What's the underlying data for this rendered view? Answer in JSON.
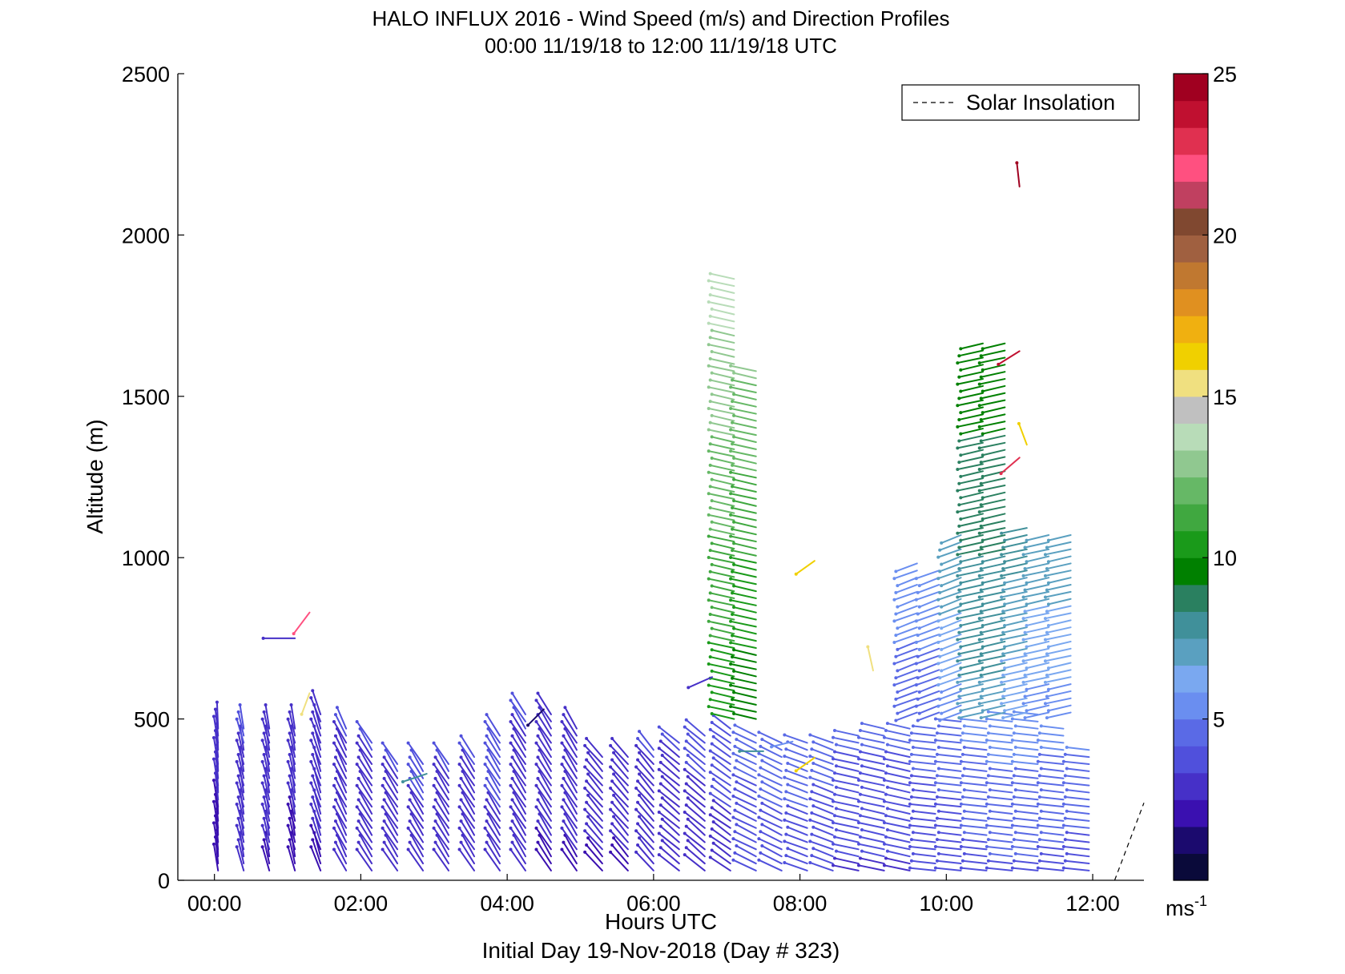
{
  "chart_data": {
    "type": "vector-profile",
    "title": "HALO INFLUX 2016 - Wind Speed (m/s) and Direction Profiles",
    "subtitle": "00:00 11/19/18 to 12:00 11/19/18  UTC",
    "xlabel": "Hours UTC",
    "xlabel2": "Initial Day 19-Nov-2018 (Day # 323)",
    "ylabel": "Altitude (m)",
    "xlim": [
      -0.5,
      12.7
    ],
    "ylim": [
      0,
      2500
    ],
    "x_ticks": [
      0,
      2,
      4,
      6,
      8,
      10,
      12
    ],
    "x_tick_labels": [
      "00:00",
      "02:00",
      "04:00",
      "06:00",
      "08:00",
      "10:00",
      "12:00"
    ],
    "y_ticks": [
      0,
      500,
      1000,
      1500,
      2000,
      2500
    ],
    "y_tick_labels": [
      "0",
      "500",
      "1000",
      "1500",
      "2000",
      "2500"
    ],
    "legend": {
      "label": "Solar Insolation",
      "placement": "top-right",
      "style": "dashed"
    },
    "colorbar": {
      "min": 0,
      "max": 25,
      "ticks": [
        5,
        10,
        15,
        20,
        25
      ],
      "tick_labels": [
        "5",
        "10",
        "15",
        "20",
        "25"
      ],
      "unit_label": "ms",
      "unit_sup": "-1",
      "colors": [
        "#0a0a3a",
        "#1b0a6e",
        "#3a10b0",
        "#4630c8",
        "#5050dc",
        "#5a6ae6",
        "#6a8ef0",
        "#7aa8f0",
        "#5aa0c0",
        "#40909a",
        "#2a8060",
        "#008000",
        "#1a9a1a",
        "#40a840",
        "#66b866",
        "#90c890",
        "#b8dcb8",
        "#c0c0c0",
        "#f0e080",
        "#f0d000",
        "#f0b010",
        "#e09020",
        "#c07830",
        "#a06040",
        "#804830",
        "#c04060",
        "#ff5080",
        "#e03050",
        "#c01030",
        "#a00020"
      ]
    },
    "solar_insolation": {
      "x": [
        12.3,
        12.7
      ],
      "y": [
        0,
        240
      ]
    },
    "profiles": [
      {
        "t": 0.05,
        "z0": 30,
        "z1": 470,
        "speed": 2.5,
        "dx": -1,
        "dy": -10
      },
      {
        "t": 0.4,
        "z0": 30,
        "z1": 470,
        "speed": 3.0,
        "dx": -2,
        "dy": -9
      },
      {
        "t": 0.75,
        "z0": 30,
        "z1": 470,
        "speed": 2.8,
        "dx": -2,
        "dy": -9
      },
      {
        "t": 1.1,
        "z0": 30,
        "z1": 470,
        "speed": 2.6,
        "dx": -2,
        "dy": -9
      },
      {
        "t": 1.45,
        "z0": 30,
        "z1": 520,
        "speed": 2.8,
        "dx": -3,
        "dy": -9
      },
      {
        "t": 1.8,
        "z0": 30,
        "z1": 490,
        "speed": 3.0,
        "dx": -4,
        "dy": -8
      },
      {
        "t": 2.15,
        "z0": 30,
        "z1": 440,
        "speed": 3.0,
        "dx": -5,
        "dy": -8
      },
      {
        "t": 2.5,
        "z0": 30,
        "z1": 380,
        "speed": 3.0,
        "dx": -5,
        "dy": -8
      },
      {
        "t": 2.85,
        "z0": 30,
        "z1": 360,
        "speed": 3.2,
        "dx": -5,
        "dy": -8
      },
      {
        "t": 3.2,
        "z0": 30,
        "z1": 380,
        "speed": 3.0,
        "dx": -5,
        "dy": -8
      },
      {
        "t": 3.55,
        "z0": 30,
        "z1": 390,
        "speed": 3.0,
        "dx": -5,
        "dy": -8
      },
      {
        "t": 3.9,
        "z0": 30,
        "z1": 460,
        "speed": 3.4,
        "dx": -5,
        "dy": -8
      },
      {
        "t": 4.25,
        "z0": 30,
        "z1": 520,
        "speed": 3.0,
        "dx": -5,
        "dy": -8
      },
      {
        "t": 4.6,
        "z0": 30,
        "z1": 520,
        "speed": 2.8,
        "dx": -5,
        "dy": -8
      },
      {
        "t": 4.95,
        "z0": 30,
        "z1": 480,
        "speed": 2.8,
        "dx": -5,
        "dy": -8
      },
      {
        "t": 5.3,
        "z0": 30,
        "z1": 400,
        "speed": 2.8,
        "dx": -6,
        "dy": -7
      },
      {
        "t": 5.65,
        "z0": 30,
        "z1": 400,
        "speed": 2.8,
        "dx": -6,
        "dy": -7
      },
      {
        "t": 6.0,
        "z0": 30,
        "z1": 420,
        "speed": 3.0,
        "dx": -6,
        "dy": -7
      },
      {
        "t": 6.35,
        "z0": 30,
        "z1": 440,
        "speed": 3.0,
        "dx": -7,
        "dy": -6
      },
      {
        "t": 6.7,
        "z0": 30,
        "z1": 450,
        "speed": 3.2,
        "dx": -7,
        "dy": -6
      },
      {
        "t": 7.05,
        "z0": 30,
        "z1": 480,
        "speed": 3.4,
        "dx": -7,
        "dy": -5
      },
      {
        "t": 7.4,
        "z0": 30,
        "z1": 460,
        "speed": 4.0,
        "dx": -8,
        "dy": -4
      },
      {
        "t": 7.75,
        "z0": 30,
        "z1": 440,
        "speed": 4.2,
        "dx": -8,
        "dy": -4
      },
      {
        "t": 8.1,
        "z0": 30,
        "z1": 440,
        "speed": 4.2,
        "dx": -8,
        "dy": -3
      },
      {
        "t": 8.45,
        "z0": 30,
        "z1": 430,
        "speed": 4.0,
        "dx": -8,
        "dy": -3
      },
      {
        "t": 8.8,
        "z0": 30,
        "z1": 460,
        "speed": 3.8,
        "dx": -9,
        "dy": -2
      },
      {
        "t": 9.15,
        "z0": 30,
        "z1": 470,
        "speed": 3.8,
        "dx": -9,
        "dy": -2
      },
      {
        "t": 9.5,
        "z0": 30,
        "z1": 480,
        "speed": 3.8,
        "dx": -9,
        "dy": -2
      },
      {
        "t": 9.85,
        "z0": 30,
        "z1": 490,
        "speed": 4.0,
        "dx": -9,
        "dy": -1
      },
      {
        "t": 10.2,
        "z0": 30,
        "z1": 500,
        "speed": 4.2,
        "dx": -9,
        "dy": -1
      },
      {
        "t": 10.55,
        "z0": 30,
        "z1": 510,
        "speed": 4.6,
        "dx": -9,
        "dy": -1
      },
      {
        "t": 10.9,
        "z0": 30,
        "z1": 520,
        "speed": 4.8,
        "dx": -9,
        "dy": -1
      },
      {
        "t": 11.25,
        "z0": 30,
        "z1": 520,
        "speed": 4.8,
        "dx": -9,
        "dy": -1
      },
      {
        "t": 11.6,
        "z0": 30,
        "z1": 480,
        "speed": 4.6,
        "dx": -9,
        "dy": -1
      },
      {
        "t": 11.95,
        "z0": 30,
        "z1": 420,
        "speed": 4.4,
        "dx": -9,
        "dy": -1
      },
      {
        "t": 7.1,
        "z0": 500,
        "z1": 1870,
        "speed": 12.0,
        "dx": -9,
        "dy": -2
      },
      {
        "t": 7.4,
        "z0": 500,
        "z1": 1590,
        "speed": 11.0,
        "dx": -9,
        "dy": -2
      },
      {
        "t": 9.6,
        "z0": 520,
        "z1": 1000,
        "speed": 5.0,
        "dx": -8,
        "dy": 3
      },
      {
        "t": 9.9,
        "z0": 520,
        "z1": 960,
        "speed": 5.0,
        "dx": -8,
        "dy": 3
      },
      {
        "t": 10.2,
        "z0": 520,
        "z1": 1080,
        "speed": 6.5,
        "dx": -8,
        "dy": 3
      },
      {
        "t": 10.5,
        "z0": 520,
        "z1": 1670,
        "speed": 8.5,
        "dx": -9,
        "dy": 2
      },
      {
        "t": 10.8,
        "z0": 520,
        "z1": 1670,
        "speed": 8.5,
        "dx": -9,
        "dy": 2
      },
      {
        "t": 11.1,
        "z0": 520,
        "z1": 1100,
        "speed": 7.0,
        "dx": -9,
        "dy": 2
      },
      {
        "t": 11.4,
        "z0": 520,
        "z1": 1090,
        "speed": 6.5,
        "dx": -9,
        "dy": 2
      },
      {
        "t": 11.7,
        "z0": 520,
        "z1": 1090,
        "speed": 6.5,
        "dx": -9,
        "dy": 2
      }
    ],
    "isolated_vectors": [
      {
        "t": 1.1,
        "z": 750,
        "speed": 2.5,
        "dx": -12,
        "dy": 0
      },
      {
        "t": 1.3,
        "z": 830,
        "speed": 22.0,
        "dx": -6,
        "dy": 8
      },
      {
        "t": 1.3,
        "z": 580,
        "speed": 15.0,
        "dx": -3,
        "dy": 8
      },
      {
        "t": 2.9,
        "z": 330,
        "speed": 8.0,
        "dx": -9,
        "dy": 3
      },
      {
        "t": 4.5,
        "z": 530,
        "speed": 1.5,
        "dx": -6,
        "dy": 6
      },
      {
        "t": 6.8,
        "z": 630,
        "speed": 3.0,
        "dx": -9,
        "dy": 4
      },
      {
        "t": 7.5,
        "z": 400,
        "speed": 8.0,
        "dx": -9,
        "dy": 0
      },
      {
        "t": 7.9,
        "z": 430,
        "speed": 5.0,
        "dx": -8,
        "dy": 2
      },
      {
        "t": 8.2,
        "z": 990,
        "speed": 16.0,
        "dx": -7,
        "dy": 5
      },
      {
        "t": 8.2,
        "z": 380,
        "speed": 16.0,
        "dx": -7,
        "dy": 5
      },
      {
        "t": 9.0,
        "z": 650,
        "speed": 15.0,
        "dx": -2,
        "dy": -9
      },
      {
        "t": 11.0,
        "z": 2150,
        "speed": 25.0,
        "dx": -1,
        "dy": -9
      },
      {
        "t": 11.0,
        "z": 1640,
        "speed": 24.0,
        "dx": -8,
        "dy": 5
      },
      {
        "t": 11.1,
        "z": 1350,
        "speed": 16.0,
        "dx": -3,
        "dy": -8
      },
      {
        "t": 11.0,
        "z": 1310,
        "speed": 23.0,
        "dx": -7,
        "dy": 6
      }
    ]
  }
}
